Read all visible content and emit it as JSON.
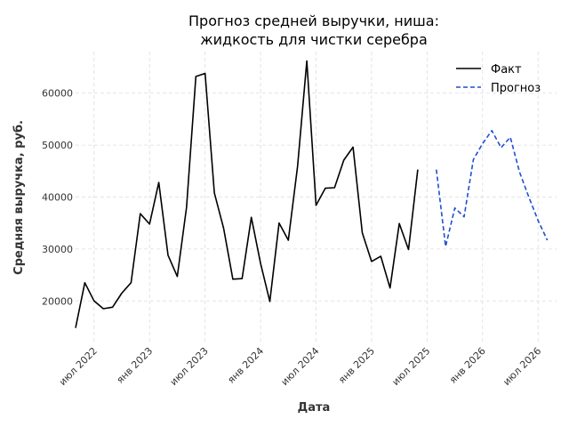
{
  "chart_data": {
    "type": "line",
    "title_lines": [
      "Прогноз средней выручки, ниша:",
      "жидкость для чистки серебра"
    ],
    "xlabel": "Дата",
    "ylabel": "Средняя выручка, руб.",
    "ylim": [
      12000,
      68000
    ],
    "yticks": [
      20000,
      30000,
      40000,
      50000,
      60000
    ],
    "x_tick_labels": [
      {
        "date": "2022-07",
        "label": "июл 2022"
      },
      {
        "date": "2023-01",
        "label": "янв 2023"
      },
      {
        "date": "2023-07",
        "label": "июл 2023"
      },
      {
        "date": "2024-01",
        "label": "янв 2024"
      },
      {
        "date": "2024-07",
        "label": "июл 2024"
      },
      {
        "date": "2025-01",
        "label": "янв 2025"
      },
      {
        "date": "2025-07",
        "label": "июл 2025"
      },
      {
        "date": "2026-01",
        "label": "янв 2026"
      },
      {
        "date": "2026-07",
        "label": "июл 2026"
      }
    ],
    "xlim": [
      "2022-05",
      "2026-09"
    ],
    "grid": true,
    "legend_position": "top-right",
    "series": [
      {
        "name": "Факт",
        "color": "#000000",
        "dash": "solid",
        "x": [
          "2022-05",
          "2022-06",
          "2022-07",
          "2022-08",
          "2022-09",
          "2022-10",
          "2022-11",
          "2022-12",
          "2023-01",
          "2023-02",
          "2023-03",
          "2023-04",
          "2023-05",
          "2023-06",
          "2023-07",
          "2023-08",
          "2023-09",
          "2023-10",
          "2023-11",
          "2023-12",
          "2024-01",
          "2024-02",
          "2024-03",
          "2024-04",
          "2024-05",
          "2024-06",
          "2024-07",
          "2024-08",
          "2024-09",
          "2024-10",
          "2024-11",
          "2024-12",
          "2025-01",
          "2025-02",
          "2025-03",
          "2025-04",
          "2025-05",
          "2025-06",
          "2025-07",
          "2025-08"
        ],
        "values": [
          14800,
          23500,
          20000,
          18500,
          18800,
          21500,
          23500,
          36800,
          34800,
          42800,
          28800,
          24700,
          38000,
          63200,
          63800,
          40800,
          34000,
          24200,
          24300,
          36100,
          27200,
          19900,
          35000,
          31700,
          45900,
          66200,
          38400,
          41700,
          41800,
          47100,
          49600,
          33100,
          27600,
          28600,
          22500,
          34900,
          29900,
          45300,
          null,
          null
        ]
      },
      {
        "name": "Прогноз",
        "color": "#1f4fd1",
        "dash": "dashed",
        "x": [
          "2025-08",
          "2025-09",
          "2025-10",
          "2025-11",
          "2025-12",
          "2026-01",
          "2026-02",
          "2026-03",
          "2026-04",
          "2026-05",
          "2026-06",
          "2026-07",
          "2026-08"
        ],
        "values": [
          45300,
          30500,
          37900,
          36200,
          47200,
          50300,
          52800,
          49500,
          51500,
          44800,
          40000,
          35500,
          31700
        ]
      }
    ]
  }
}
